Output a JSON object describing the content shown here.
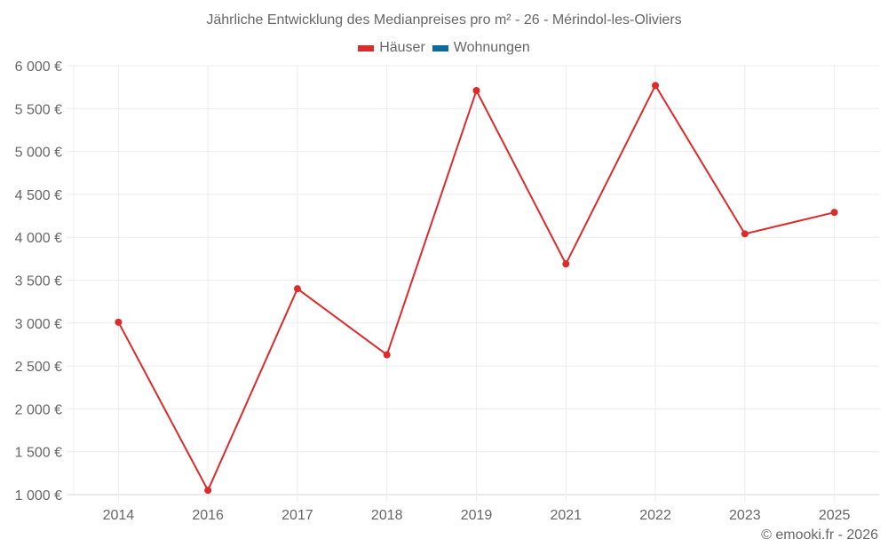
{
  "header": {
    "title": "Jährliche Entwicklung des Medianpreises pro m² - 26 - Mérindol-les-Oliviers"
  },
  "legend": {
    "items": [
      {
        "label": "Häuser",
        "color": "#dd2a2a"
      },
      {
        "label": "Wohnungen",
        "color": "#0b6aa2"
      }
    ]
  },
  "footer": {
    "credit": "© emooki.fr - 2026"
  },
  "chart_data": {
    "type": "line",
    "title": "Jährliche Entwicklung des Medianpreises pro m² - 26 - Mérindol-les-Oliviers",
    "xlabel": "",
    "ylabel": "",
    "categories": [
      "2014",
      "2016",
      "2017",
      "2018",
      "2019",
      "2021",
      "2022",
      "2023",
      "2025"
    ],
    "series": [
      {
        "name": "Häuser",
        "color": "#dd2a2a",
        "values": [
          3010,
          1050,
          3400,
          2630,
          5710,
          3690,
          5770,
          4040,
          4290
        ]
      },
      {
        "name": "Wohnungen",
        "color": "#0b6aa2",
        "values": []
      }
    ],
    "ylim": [
      1000,
      6000
    ],
    "yticks": [
      1000,
      1500,
      2000,
      2500,
      3000,
      3500,
      4000,
      4500,
      5000,
      5500,
      6000
    ],
    "ytick_labels": [
      "1 000 €",
      "1 500 €",
      "2 000 €",
      "2 500 €",
      "3 000 €",
      "3 500 €",
      "4 000 €",
      "4 500 €",
      "5 000 €",
      "5 500 €",
      "6 000 €"
    ],
    "grid": true,
    "legend_position": "top"
  }
}
